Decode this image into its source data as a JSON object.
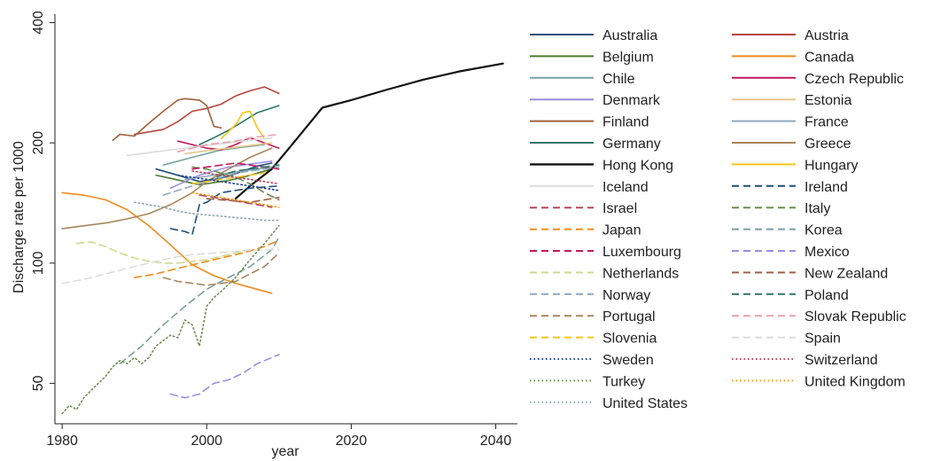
{
  "chart_data": {
    "type": "line",
    "title": "",
    "xlabel": "year",
    "ylabel": "Discharge rate per 1000",
    "xlim": [
      1979,
      2043
    ],
    "ylim": [
      39.6,
      420
    ],
    "yscale": "log",
    "xticks": [
      1980,
      2000,
      2020,
      2040
    ],
    "yticks": [
      50,
      100,
      200,
      400
    ],
    "grid": false,
    "legend_position": "right",
    "series": [
      {
        "name": "Australia",
        "color": "#1f4e79",
        "dash": "solid",
        "x": [
          1993,
          1995,
          1997,
          1999,
          2001,
          2003,
          2005,
          2007,
          2009
        ],
        "y": [
          172,
          168,
          164,
          160,
          162,
          165,
          170,
          175,
          178
        ]
      },
      {
        "name": "Austria",
        "color": "#b5473c",
        "dash": "solid",
        "x": [
          1990,
          1992,
          1994,
          1996,
          1998,
          2000,
          2002,
          2004,
          2006,
          2008,
          2010
        ],
        "y": [
          210,
          213,
          216,
          226,
          240,
          244,
          250,
          262,
          270,
          276,
          266
        ]
      },
      {
        "name": "Belgium",
        "color": "#4c7a2e",
        "dash": "solid",
        "x": [
          1993,
          1995,
          1997,
          1999,
          2001,
          2003,
          2005,
          2007,
          2009
        ],
        "y": [
          166,
          163,
          160,
          157,
          159,
          161,
          164,
          168,
          172
        ]
      },
      {
        "name": "Canada",
        "color": "#ef8b1c",
        "dash": "solid",
        "x": [
          1980,
          1983,
          1986,
          1989,
          1992,
          1995,
          1998,
          2001,
          2004,
          2007,
          2009
        ],
        "y": [
          150,
          148,
          144,
          136,
          124,
          111,
          99,
          93,
          89,
          86,
          84
        ]
      },
      {
        "name": "Chile",
        "color": "#78a5a3",
        "dash": "solid",
        "x": [
          1994,
          1996,
          1998,
          2000,
          2002,
          2004,
          2006,
          2008
        ],
        "y": [
          176,
          180,
          184,
          188,
          192,
          194,
          196,
          198
        ]
      },
      {
        "name": "Czech Republic",
        "color": "#c2185b",
        "dash": "solid",
        "x": [
          1996,
          1998,
          2000,
          2002,
          2004,
          2006,
          2008,
          2010
        ],
        "y": [
          202,
          198,
          194,
          192,
          198,
          206,
          200,
          194
        ]
      },
      {
        "name": "Denmark",
        "color": "#9b8ee0",
        "dash": "solid",
        "x": [
          1995,
          1997,
          1999,
          2001,
          2003,
          2005,
          2007,
          2009
        ],
        "y": [
          154,
          160,
          166,
          170,
          174,
          176,
          178,
          180
        ]
      },
      {
        "name": "Estonia",
        "color": "#e6c88a",
        "dash": "solid",
        "x": [
          1997,
          1999,
          2001,
          2003,
          2005,
          2007,
          2009
        ],
        "y": [
          188,
          190,
          192,
          194,
          196,
          198,
          200
        ]
      },
      {
        "name": "Finland",
        "color": "#a0603a",
        "dash": "solid",
        "x": [
          1987,
          1988,
          1990,
          1992,
          1994,
          1996,
          1997,
          1999,
          2000,
          2001,
          2002
        ],
        "y": [
          203,
          210,
          208,
          224,
          240,
          256,
          258,
          256,
          248,
          220,
          218
        ]
      },
      {
        "name": "France",
        "color": "#8fa9bf",
        "dash": "solid",
        "x": [
          1997,
          1999,
          2001,
          2003,
          2005,
          2007,
          2009
        ],
        "y": [
          162,
          164,
          166,
          168,
          170,
          172,
          174
        ]
      },
      {
        "name": "Germany",
        "color": "#2e7566",
        "dash": "solid",
        "x": [
          1999,
          2001,
          2003,
          2005,
          2007,
          2010
        ],
        "y": [
          198,
          206,
          215,
          226,
          238,
          248
        ]
      },
      {
        "name": "Greece",
        "color": "#a8865a",
        "dash": "solid",
        "x": [
          1980,
          1983,
          1986,
          1989,
          1992,
          1995,
          1998,
          2000,
          2003,
          2006,
          2009
        ],
        "y": [
          122,
          124,
          126,
          129,
          133,
          140,
          150,
          160,
          172,
          184,
          194
        ]
      },
      {
        "name": "Hong Kong",
        "color": "#111111",
        "dash": "solid",
        "x": [
          2004,
          2006,
          2009,
          2012,
          2016,
          2020,
          2025,
          2030,
          2035,
          2041
        ],
        "y": [
          145,
          156,
          172,
          200,
          245,
          256,
          272,
          288,
          302,
          316
        ]
      },
      {
        "name": "Hungary",
        "color": "#f5c518",
        "dash": "solid",
        "x": [
          2002,
          2004,
          2005,
          2006,
          2007,
          2008
        ],
        "y": [
          205,
          222,
          238,
          240,
          218,
          205
        ]
      },
      {
        "name": "Iceland",
        "color": "#dcdcdc",
        "dash": "solid",
        "x": [
          1989,
          1991,
          1993,
          1995,
          1997,
          1999,
          2001,
          2003,
          2005,
          2007,
          2009
        ],
        "y": [
          186,
          188,
          190,
          192,
          194,
          196,
          198,
          200,
          202,
          204,
          206
        ]
      },
      {
        "name": "Ireland",
        "color": "#1f4e79",
        "dash": "dash",
        "x": [
          1995,
          1997,
          1998,
          1999,
          2000,
          2001,
          2002,
          2004,
          2006,
          2008,
          2010
        ],
        "y": [
          122,
          120,
          118,
          140,
          142,
          146,
          150,
          152,
          154,
          155,
          156
        ]
      },
      {
        "name": "Israel",
        "color": "#b5475a",
        "dash": "dash",
        "x": [
          1999,
          2001,
          2003,
          2005,
          2007,
          2009
        ],
        "y": [
          148,
          146,
          144,
          142,
          140,
          138
        ]
      },
      {
        "name": "Italy",
        "color": "#6e8b4e",
        "dash": "dash",
        "x": [
          1998,
          2000,
          2002,
          2004,
          2006,
          2008,
          2010
        ],
        "y": [
          174,
          172,
          168,
          164,
          158,
          150,
          144
        ]
      },
      {
        "name": "Japan",
        "color": "#ef8b1c",
        "dash": "dash",
        "x": [
          1990,
          1993,
          1996,
          1999,
          2002,
          2005,
          2008,
          2010
        ],
        "y": [
          92,
          94,
          97,
          100,
          103,
          106,
          110,
          114
        ]
      },
      {
        "name": "Korea",
        "color": "#7aa0a0",
        "dash": "dash",
        "x": [
          1988,
          1991,
          1994,
          1997,
          2000,
          2003,
          2006,
          2009,
          2010
        ],
        "y": [
          56,
          62,
          70,
          78,
          86,
          92,
          98,
          108,
          116
        ]
      },
      {
        "name": "Luxembourg",
        "color": "#c2185b",
        "dash": "dash",
        "x": [
          1998,
          2000,
          2002,
          2004,
          2006,
          2008,
          2010
        ],
        "y": [
          172,
          174,
          176,
          178,
          176,
          174,
          172
        ]
      },
      {
        "name": "Mexico",
        "color": "#9b8ee0",
        "dash": "dash",
        "x": [
          1995,
          1997,
          1999,
          2001,
          2003,
          2005,
          2007,
          2009,
          2010
        ],
        "y": [
          47,
          46,
          47,
          50,
          51,
          53,
          56,
          58,
          59
        ]
      },
      {
        "name": "Netherlands",
        "color": "#cfd98e",
        "dash": "dash",
        "x": [
          1982,
          1984,
          1986,
          1988,
          1990,
          1992,
          1994,
          1996,
          1998,
          2000,
          2002,
          2004,
          2006
        ],
        "y": [
          112,
          113,
          110,
          106,
          103,
          101,
          100,
          100,
          101,
          102,
          104,
          106,
          108
        ]
      },
      {
        "name": "New Zealand",
        "color": "#a0604a",
        "dash": "dash",
        "x": [
          2000,
          2002,
          2004,
          2006,
          2008,
          2010
        ],
        "y": [
          145,
          144,
          143,
          142,
          144,
          146
        ]
      },
      {
        "name": "Norway",
        "color": "#8fa9bf",
        "dash": "dash",
        "x": [
          1994,
          1996,
          1998,
          2000,
          2002,
          2004,
          2006,
          2008,
          2010
        ],
        "y": [
          148,
          152,
          156,
          160,
          164,
          168,
          170,
          172,
          174
        ]
      },
      {
        "name": "Poland",
        "color": "#2e7566",
        "dash": "dash",
        "x": [
          2000,
          2002,
          2004,
          2006,
          2008,
          2010
        ],
        "y": [
          160,
          166,
          170,
          172,
          174,
          176
        ]
      },
      {
        "name": "Portugal",
        "color": "#a8865a",
        "dash": "dash",
        "x": [
          1994,
          1996,
          1998,
          2000,
          2002,
          2004,
          2006,
          2008,
          2010
        ],
        "y": [
          92,
          90,
          89,
          88,
          89,
          90,
          94,
          98,
          106
        ]
      },
      {
        "name": "Slovak Republic",
        "color": "#e8a0b0",
        "dash": "dash",
        "x": [
          1996,
          1998,
          2000,
          2002,
          2004,
          2006,
          2008,
          2010
        ],
        "y": [
          190,
          194,
          198,
          200,
          202,
          206,
          208,
          210
        ]
      },
      {
        "name": "Slovenia",
        "color": "#f5c518",
        "dash": "dash",
        "x": [
          1998,
          2000,
          2002,
          2004,
          2006,
          2008
        ],
        "y": [
          158,
          160,
          162,
          164,
          166,
          168
        ]
      },
      {
        "name": "Spain",
        "color": "#dcdcdc",
        "dash": "dash",
        "x": [
          1980,
          1983,
          1986,
          1989,
          1992,
          1995,
          1998,
          2001,
          2004,
          2007,
          2010
        ],
        "y": [
          89,
          91,
          94,
          97,
          100,
          103,
          105,
          106,
          107,
          108,
          108
        ]
      },
      {
        "name": "Sweden",
        "color": "#1f3f8f",
        "dash": "dot",
        "x": [
          1996,
          1998,
          2000,
          2002,
          2004,
          2006,
          2008,
          2010
        ],
        "y": [
          166,
          164,
          162,
          160,
          158,
          156,
          154,
          152
        ]
      },
      {
        "name": "Switzerland",
        "color": "#b5475a",
        "dash": "dot",
        "x": [
          1998,
          2000,
          2002,
          2004,
          2006,
          2008,
          2010
        ],
        "y": [
          170,
          168,
          166,
          164,
          162,
          160,
          158
        ]
      },
      {
        "name": "Turkey",
        "color": "#6e8b4e",
        "dash": "dot",
        "x": [
          1980,
          1981,
          1982,
          1983,
          1984,
          1985,
          1986,
          1987,
          1988,
          1989,
          1990,
          1991,
          1992,
          1993,
          1994,
          1995,
          1996,
          1997,
          1998,
          1999,
          2000,
          2001,
          2002,
          2004,
          2006,
          2008,
          2010
        ],
        "y": [
          42,
          44,
          43,
          46,
          48,
          50,
          52,
          55,
          57,
          56,
          58,
          56,
          58,
          62,
          64,
          66,
          65,
          72,
          70,
          62,
          78,
          82,
          85,
          92,
          102,
          112,
          124
        ]
      },
      {
        "name": "United Kingdom",
        "color": "#ef9b1c",
        "dash": "dot",
        "x": [
          1998,
          2000,
          2002,
          2004,
          2006,
          2008,
          2010
        ],
        "y": [
          150,
          148,
          146,
          144,
          142,
          140,
          138
        ]
      },
      {
        "name": "United States",
        "color": "#8fa9a9",
        "dash": "dot",
        "x": [
          1990,
          1992,
          1994,
          1996,
          1998,
          2000,
          2002,
          2004,
          2006,
          2008,
          2010
        ],
        "y": [
          142,
          140,
          138,
          135,
          133,
          132,
          131,
          130,
          129,
          128,
          128
        ]
      }
    ]
  }
}
